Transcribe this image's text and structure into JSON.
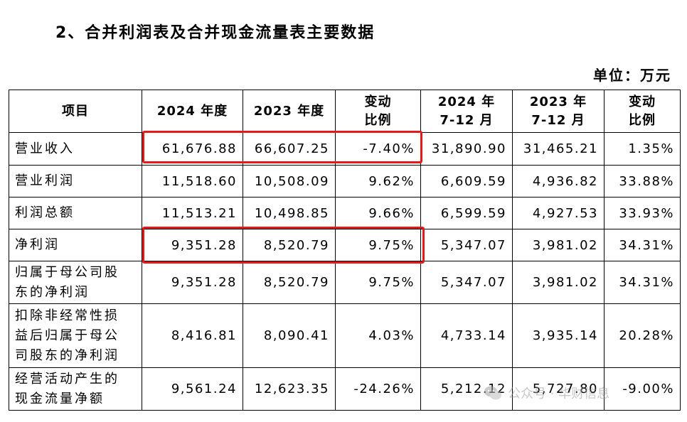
{
  "heading": "2、合并利润表及合并现金流量表主要数据",
  "unit": "单位：万元",
  "table": {
    "headers": [
      [
        "项目"
      ],
      [
        "2024 年度"
      ],
      [
        "2023 年度"
      ],
      [
        "变动",
        "比例"
      ],
      [
        "2024 年",
        "7-12 月"
      ],
      [
        "2023 年",
        "7-12 月"
      ],
      [
        "变动",
        "比例"
      ]
    ],
    "rows": [
      {
        "label": [
          "营业收入"
        ],
        "values": [
          "61,676.88",
          "66,607.25",
          "-7.40%",
          "31,890.90",
          "31,465.21",
          "1.35%"
        ]
      },
      {
        "label": [
          "营业利润"
        ],
        "values": [
          "11,518.60",
          "10,508.09",
          "9.62%",
          "6,609.59",
          "4,936.82",
          "33.88%"
        ]
      },
      {
        "label": [
          "利润总额"
        ],
        "values": [
          "11,513.21",
          "10,498.85",
          "9.66%",
          "6,599.59",
          "4,927.53",
          "33.93%"
        ]
      },
      {
        "label": [
          "净利润"
        ],
        "values": [
          "9,351.28",
          "8,520.79",
          "9.75%",
          "5,347.07",
          "3,981.02",
          "34.31%"
        ]
      },
      {
        "label": [
          "归属于母公司股",
          "东的净利润"
        ],
        "values": [
          "9,351.28",
          "8,520.79",
          "9.75%",
          "5,347.07",
          "3,981.02",
          "34.31%"
        ]
      },
      {
        "label": [
          "扣除非经常性损",
          "益后归属于母公",
          "司股东的净利润"
        ],
        "values": [
          "8,416.81",
          "8,090.41",
          "4.03%",
          "4,733.14",
          "3,935.14",
          "20.28%"
        ]
      },
      {
        "label": [
          "经营活动产生的",
          "现金流量净额"
        ],
        "values": [
          "9,561.24",
          "12,623.35",
          "-24.26%",
          "5,212.12",
          "5,727.80",
          "-9.00%"
        ]
      }
    ]
  },
  "highlight_color": "#e21a1a",
  "watermark": {
    "icon": "wechat-icon",
    "text": "公众号 · 华财信息"
  }
}
